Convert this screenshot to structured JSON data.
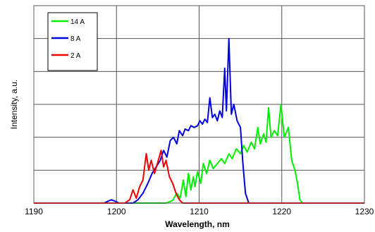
{
  "chart_data": {
    "type": "line",
    "xlabel": "Wavelength, nm",
    "ylabel": "Intensity, a.u.",
    "xlim": [
      1190,
      1230
    ],
    "x_ticks": [
      "1190",
      "1200",
      "1210",
      "1220",
      "1230"
    ],
    "ylim": [
      0,
      6
    ],
    "grid": true,
    "legend_position": "top-left",
    "series": [
      {
        "name": "14 A",
        "color": "#00ee00",
        "points": [
          [
            1190,
            0
          ],
          [
            1206,
            0
          ],
          [
            1206.8,
            0.08
          ],
          [
            1207.3,
            0.3
          ],
          [
            1207.7,
            0.15
          ],
          [
            1208.1,
            0.7
          ],
          [
            1208.4,
            0.2
          ],
          [
            1208.7,
            0.9
          ],
          [
            1209.0,
            0.4
          ],
          [
            1209.3,
            0.8
          ],
          [
            1209.5,
            0.5
          ],
          [
            1209.8,
            0.95
          ],
          [
            1210.2,
            0.6
          ],
          [
            1210.5,
            1.2
          ],
          [
            1210.9,
            0.9
          ],
          [
            1211.3,
            1.3
          ],
          [
            1211.7,
            1.05
          ],
          [
            1212.2,
            1.2
          ],
          [
            1212.7,
            1.35
          ],
          [
            1213.1,
            1.2
          ],
          [
            1213.6,
            1.5
          ],
          [
            1214.0,
            1.35
          ],
          [
            1214.5,
            1.65
          ],
          [
            1215.0,
            1.5
          ],
          [
            1215.4,
            1.75
          ],
          [
            1215.8,
            1.55
          ],
          [
            1216.3,
            1.85
          ],
          [
            1216.7,
            1.65
          ],
          [
            1217.1,
            2.3
          ],
          [
            1217.4,
            1.8
          ],
          [
            1217.8,
            2.1
          ],
          [
            1218.1,
            1.85
          ],
          [
            1218.4,
            2.9
          ],
          [
            1218.7,
            2.0
          ],
          [
            1219.1,
            2.2
          ],
          [
            1219.5,
            2.05
          ],
          [
            1219.9,
            3.0
          ],
          [
            1220.3,
            2.0
          ],
          [
            1220.8,
            2.3
          ],
          [
            1221.2,
            1.3
          ],
          [
            1221.6,
            1.0
          ],
          [
            1221.9,
            0.6
          ],
          [
            1222.2,
            0.1
          ],
          [
            1222.5,
            0
          ],
          [
            1230,
            0
          ]
        ]
      },
      {
        "name": "8 A",
        "color": "#0000dd",
        "points": [
          [
            1190,
            0
          ],
          [
            1198.5,
            0
          ],
          [
            1199.0,
            0.06
          ],
          [
            1199.4,
            0.1
          ],
          [
            1199.9,
            0.05
          ],
          [
            1200.3,
            0
          ],
          [
            1202.0,
            0
          ],
          [
            1202.6,
            0.1
          ],
          [
            1203.2,
            0.3
          ],
          [
            1203.8,
            0.6
          ],
          [
            1204.3,
            0.9
          ],
          [
            1204.8,
            1.1
          ],
          [
            1205.3,
            1.3
          ],
          [
            1205.7,
            1.6
          ],
          [
            1206.1,
            1.4
          ],
          [
            1206.5,
            1.9
          ],
          [
            1206.9,
            2.0
          ],
          [
            1207.3,
            1.8
          ],
          [
            1207.6,
            2.2
          ],
          [
            1208.0,
            2.05
          ],
          [
            1208.3,
            2.25
          ],
          [
            1208.7,
            2.2
          ],
          [
            1209.0,
            2.35
          ],
          [
            1209.4,
            2.3
          ],
          [
            1209.8,
            2.35
          ],
          [
            1210.1,
            2.5
          ],
          [
            1210.4,
            2.4
          ],
          [
            1210.7,
            2.55
          ],
          [
            1211.0,
            2.45
          ],
          [
            1211.3,
            3.2
          ],
          [
            1211.6,
            2.6
          ],
          [
            1211.9,
            2.7
          ],
          [
            1212.2,
            2.5
          ],
          [
            1212.5,
            2.8
          ],
          [
            1212.8,
            2.6
          ],
          [
            1213.1,
            4.1
          ],
          [
            1213.3,
            2.8
          ],
          [
            1213.6,
            5.0
          ],
          [
            1213.9,
            2.7
          ],
          [
            1214.2,
            3.0
          ],
          [
            1214.6,
            2.5
          ],
          [
            1215.0,
            2.3
          ],
          [
            1215.3,
            1.2
          ],
          [
            1215.6,
            0.3
          ],
          [
            1216.0,
            0
          ],
          [
            1230,
            0
          ]
        ]
      },
      {
        "name": "2 A",
        "color": "#ee0000",
        "points": [
          [
            1190,
            0
          ],
          [
            1201.0,
            0
          ],
          [
            1201.6,
            0.1
          ],
          [
            1202.0,
            0.4
          ],
          [
            1202.4,
            0.15
          ],
          [
            1202.8,
            0.5
          ],
          [
            1203.2,
            0.7
          ],
          [
            1203.6,
            1.5
          ],
          [
            1203.9,
            1.0
          ],
          [
            1204.2,
            1.3
          ],
          [
            1204.6,
            0.9
          ],
          [
            1205.0,
            1.25
          ],
          [
            1205.4,
            1.6
          ],
          [
            1205.7,
            1.1
          ],
          [
            1206.0,
            1.3
          ],
          [
            1206.4,
            0.8
          ],
          [
            1206.8,
            0.6
          ],
          [
            1207.2,
            0.3
          ],
          [
            1207.6,
            0.1
          ],
          [
            1208.0,
            0
          ],
          [
            1230,
            0
          ]
        ]
      }
    ]
  }
}
